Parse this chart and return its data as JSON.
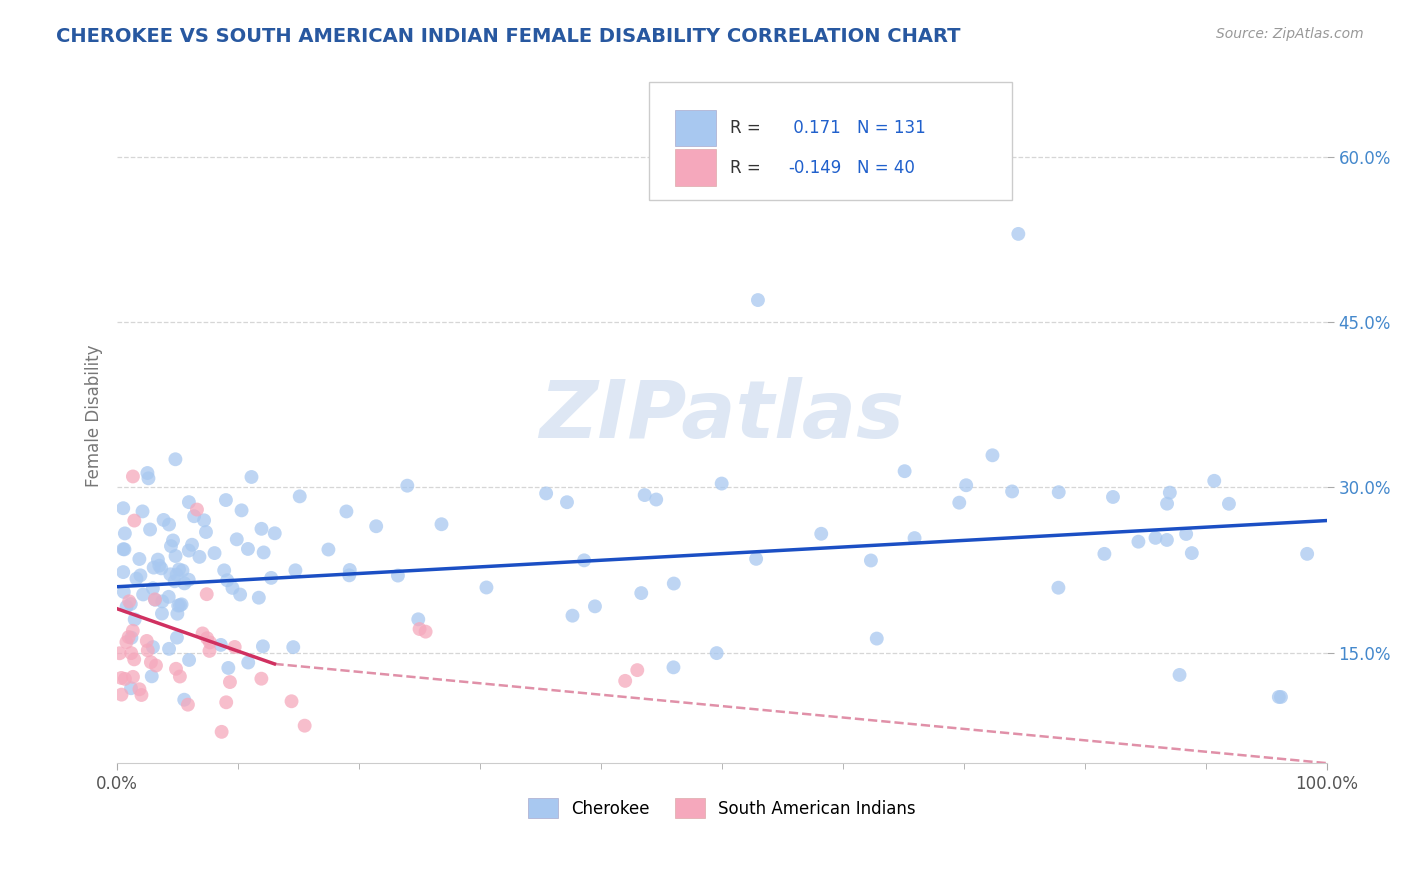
{
  "title": "CHEROKEE VS SOUTH AMERICAN INDIAN FEMALE DISABILITY CORRELATION CHART",
  "source": "Source: ZipAtlas.com",
  "ylabel": "Female Disability",
  "xlim": [
    0,
    100
  ],
  "ylim": [
    5,
    68
  ],
  "yticks": [
    15,
    30,
    45,
    60
  ],
  "ytick_labels": [
    "15.0%",
    "30.0%",
    "45.0%",
    "60.0%"
  ],
  "xticks": [
    0,
    100
  ],
  "xtick_labels": [
    "0.0%",
    "100.0%"
  ],
  "bottom_legend_labels": [
    "Cherokee",
    "South American Indians"
  ],
  "r_cherokee": 0.171,
  "n_cherokee": 131,
  "r_south": -0.149,
  "n_south": 40,
  "blue_scatter": "#A8C8F0",
  "pink_scatter": "#F5A8BC",
  "blue_line": "#1B4FC4",
  "pink_line_solid": "#D03060",
  "pink_line_dash": "#E090A8",
  "title_color": "#2858A0",
  "source_color": "#999999",
  "legend_text_dark": "#333333",
  "legend_r_color": "#2060CC",
  "grid_color": "#CCCCCC",
  "background_color": "#FFFFFF",
  "watermark": "ZIPatlas",
  "watermark_color": "#C8D8EE",
  "blue_legend_sq": "#A8C8F0",
  "pink_legend_sq": "#F5A8BC"
}
